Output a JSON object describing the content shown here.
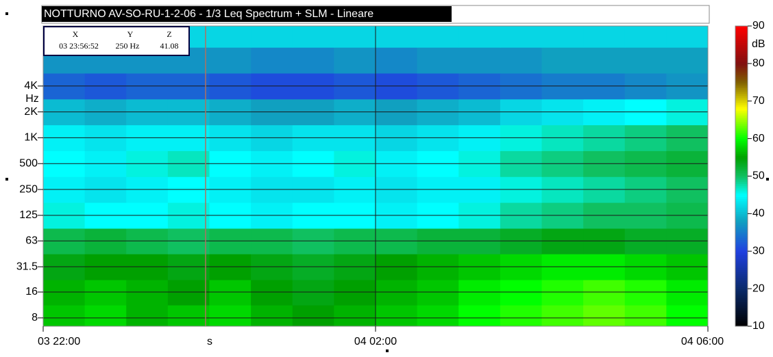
{
  "chart_data": {
    "type": "heatmap",
    "title": "NOTTURNO AV-SO-RU-1-2-06  - 1/3 Leq Spectrum + SLM - Lineare",
    "x_label": "s",
    "y_label": "Hz",
    "xlim": [
      0,
      8
    ],
    "xticks": [
      {
        "value": 0,
        "label": "03 22:00"
      },
      {
        "value": 4,
        "label": "04 02:00"
      },
      {
        "value": 8,
        "label": "04 06:00"
      }
    ],
    "log_y": true,
    "ylim": [
      6.4,
      20000
    ],
    "yticks": [
      8,
      16,
      31.5,
      63,
      125,
      250,
      500,
      {
        "value": 1000,
        "label": "1K"
      },
      {
        "value": 2000,
        "label": "2K"
      },
      {
        "value": 4000,
        "label": "4K"
      }
    ],
    "y": [
      8,
      16,
      31.5,
      63,
      125,
      250,
      500,
      1000,
      2000,
      4000,
      8000,
      16000
    ],
    "z": [
      [
        57,
        58,
        56,
        57,
        58,
        56,
        55,
        56,
        57,
        58,
        60,
        61,
        62,
        63,
        62,
        60
      ],
      [
        56,
        57,
        56,
        55,
        57,
        55,
        54,
        55,
        56,
        57,
        59,
        60,
        61,
        62,
        61,
        59
      ],
      [
        54,
        55,
        55,
        54,
        55,
        54,
        53,
        54,
        55,
        56,
        57,
        58,
        59,
        59,
        58,
        57
      ],
      [
        51,
        52,
        51,
        50,
        51,
        51,
        50,
        51,
        51,
        52,
        52,
        53,
        54,
        54,
        53,
        53
      ],
      [
        46,
        45,
        45,
        46,
        45,
        44,
        45,
        45,
        44,
        45,
        46,
        48,
        49,
        50,
        50,
        51
      ],
      [
        44,
        43,
        44,
        45,
        44,
        43,
        43,
        44,
        43,
        44,
        44,
        46,
        47,
        48,
        49,
        50
      ],
      [
        45,
        44,
        46,
        47,
        45,
        44,
        45,
        46,
        44,
        45,
        46,
        48,
        49,
        50,
        51,
        52
      ],
      [
        44,
        43,
        44,
        44,
        43,
        42,
        43,
        43,
        42,
        43,
        44,
        46,
        47,
        48,
        49,
        50
      ],
      [
        40,
        39,
        40,
        40,
        39,
        38,
        38,
        39,
        38,
        39,
        40,
        42,
        43,
        44,
        45,
        46
      ],
      [
        33,
        32,
        33,
        33,
        32,
        31,
        31,
        32,
        31,
        32,
        33,
        34,
        35,
        35,
        36,
        37
      ],
      [
        37,
        37,
        37,
        37,
        37,
        36,
        36,
        37,
        36,
        37,
        37,
        37,
        38,
        38,
        38,
        38
      ],
      [
        42,
        42,
        42,
        42,
        42,
        42,
        42,
        42,
        42,
        42,
        42,
        42,
        42,
        42,
        42,
        42
      ]
    ],
    "colorbar_label": "dB",
    "zlim": [
      10,
      90
    ],
    "zticks": [
      10,
      20,
      30,
      40,
      50,
      60,
      70,
      80,
      90
    ],
    "colorscale": [
      [
        10,
        "#000000"
      ],
      [
        20,
        "#0a2a6a"
      ],
      [
        30,
        "#2040e0"
      ],
      [
        38,
        "#10a0c0"
      ],
      [
        45,
        "#00ffff"
      ],
      [
        50,
        "#10c060"
      ],
      [
        55,
        "#00a000"
      ],
      [
        60,
        "#00ff00"
      ],
      [
        68,
        "#ffff00"
      ],
      [
        75,
        "#806000"
      ],
      [
        80,
        "#801010"
      ],
      [
        90,
        "#ff0000"
      ]
    ],
    "grid": true,
    "cursor": {
      "x_label": "X",
      "y_label": "Y",
      "z_label": "Z",
      "x": "03 23:56:52",
      "y": "250 Hz",
      "z": "41.08"
    }
  }
}
